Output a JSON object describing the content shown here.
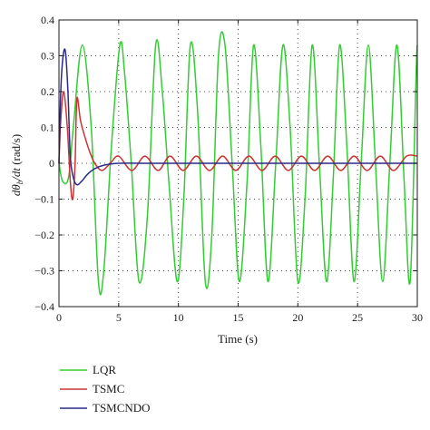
{
  "chart_data": {
    "type": "line",
    "xlabel": "Time (s)",
    "ylabel_parts": {
      "lhs": "dθ",
      "sub": "b",
      "mid": "/dt",
      "unit": " (rad/s)"
    },
    "xlim": [
      0,
      30
    ],
    "ylim": [
      -0.4,
      0.4
    ],
    "xticks": [
      0,
      5,
      10,
      15,
      20,
      25,
      30
    ],
    "yticks": [
      -0.4,
      -0.3,
      -0.2,
      -0.1,
      0,
      0.1,
      0.2,
      0.3,
      0.4
    ],
    "ytick_labels": [
      "−0.4",
      "−0.3",
      "−0.2",
      "−0.1",
      "0",
      "0.1",
      "0.2",
      "0.3",
      "0.4"
    ],
    "grid": "dotted",
    "legend_position": "below-left",
    "series": [
      {
        "name": "LQR",
        "color": "#33cc33",
        "x": [
          0,
          0.3,
          0.8,
          1.2,
          1.95,
          2.7,
          3.3,
          3.75,
          4.4,
          5.1,
          5.5,
          6.05,
          6.7,
          7.4,
          8.1,
          8.65,
          9.2,
          9.9,
          10.45,
          11.0,
          11.6,
          12.25,
          12.8,
          13.35,
          13.9,
          14.5,
          15.1,
          15.75,
          16.3,
          16.9,
          17.5,
          18.15,
          18.75,
          19.35,
          20.0,
          20.6,
          21.2,
          21.8,
          22.4,
          22.95,
          23.5,
          24.1,
          24.7,
          25.3,
          25.9,
          26.5,
          27.1,
          27.7,
          28.3,
          28.9,
          29.4,
          29.9,
          30
        ],
        "y": [
          0.0,
          -0.05,
          -0.04,
          0.1,
          0.33,
          0.1,
          -0.33,
          -0.3,
          0.05,
          0.33,
          0.25,
          0.0,
          -0.33,
          -0.15,
          0.33,
          0.2,
          -0.05,
          -0.33,
          -0.1,
          0.33,
          0.15,
          -0.33,
          -0.2,
          0.3,
          0.33,
          0.0,
          -0.33,
          -0.05,
          0.33,
          0.05,
          -0.33,
          0.0,
          0.33,
          0.1,
          -0.33,
          -0.1,
          0.33,
          0.0,
          -0.33,
          -0.05,
          0.33,
          0.05,
          -0.33,
          0.0,
          0.33,
          0.0,
          -0.33,
          0.0,
          0.33,
          -0.05,
          -0.33,
          0.25,
          0.33
        ]
      },
      {
        "name": "TSMC",
        "color": "#cc3333",
        "x": [
          0,
          0.15,
          0.4,
          0.7,
          0.95,
          1.15,
          1.35,
          1.5,
          1.8,
          2.2,
          2.6,
          3.0,
          3.6,
          4.3,
          5.0,
          6.1,
          7.2,
          8.3,
          9.3,
          10.4,
          11.5,
          12.6,
          13.7,
          14.8,
          15.9,
          17.0,
          18.1,
          19.2,
          20.3,
          21.4,
          22.5,
          23.6,
          24.7,
          25.8,
          26.9,
          28.0,
          29.1,
          30
        ],
        "y": [
          0.0,
          0.12,
          0.2,
          0.1,
          -0.05,
          -0.1,
          0.0,
          0.18,
          0.12,
          0.07,
          0.03,
          0.0,
          -0.02,
          0.0,
          0.02,
          -0.02,
          0.02,
          -0.02,
          0.02,
          -0.02,
          0.02,
          -0.02,
          0.02,
          -0.02,
          0.02,
          -0.02,
          0.02,
          -0.02,
          0.02,
          -0.02,
          0.02,
          -0.02,
          0.02,
          -0.02,
          0.02,
          -0.02,
          0.02,
          0.02
        ]
      },
      {
        "name": "TSMCNDO",
        "color": "#2a2a8c",
        "x": [
          0,
          0.15,
          0.35,
          0.55,
          0.75,
          0.95,
          1.2,
          1.5,
          1.9,
          2.4,
          3.0,
          3.8,
          5.0,
          7.0,
          10.0,
          15.0,
          20.0,
          25.0,
          30
        ],
        "y": [
          0.0,
          0.2,
          0.3,
          0.31,
          0.2,
          0.02,
          -0.04,
          -0.06,
          -0.05,
          -0.03,
          -0.015,
          -0.005,
          0.0,
          0.0,
          0.0,
          0.0,
          0.0,
          0.0,
          0.0
        ]
      }
    ]
  }
}
